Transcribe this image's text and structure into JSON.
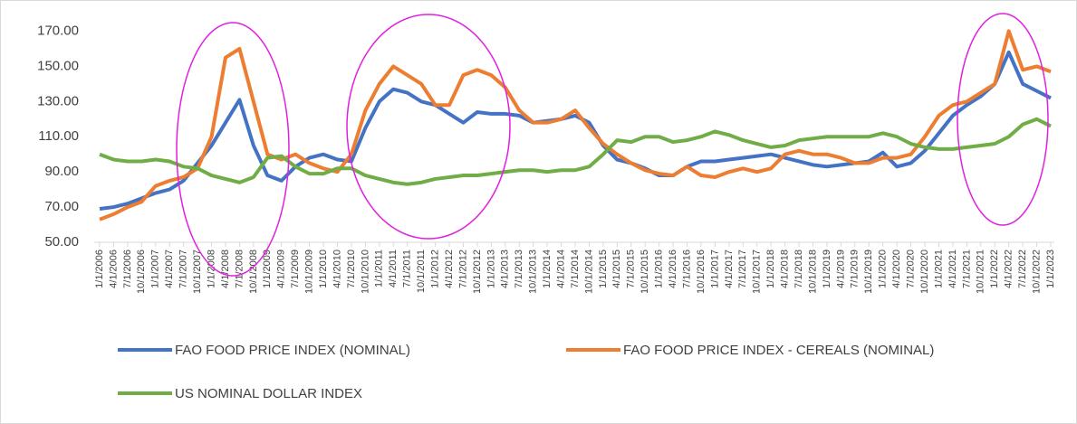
{
  "chart_data": {
    "type": "line",
    "categories": [
      "1/1/2006",
      "4/1/2006",
      "7/1/2006",
      "10/1/2006",
      "1/1/2007",
      "4/1/2007",
      "7/1/2007",
      "10/1/2007",
      "1/1/2008",
      "4/1/2008",
      "7/1/2008",
      "10/1/2008",
      "1/1/2009",
      "4/1/2009",
      "7/1/2009",
      "10/1/2009",
      "1/1/2010",
      "4/1/2010",
      "7/1/2010",
      "10/1/2010",
      "1/1/2011",
      "4/1/2011",
      "7/1/2011",
      "10/1/2011",
      "1/1/2012",
      "4/1/2012",
      "7/1/2012",
      "10/1/2012",
      "1/1/2013",
      "4/1/2013",
      "7/1/2013",
      "10/1/2013",
      "1/1/2014",
      "4/1/2014",
      "7/1/2014",
      "10/1/2014",
      "1/1/2015",
      "4/1/2015",
      "7/1/2015",
      "10/1/2015",
      "1/1/2016",
      "4/1/2016",
      "7/1/2016",
      "10/1/2016",
      "1/1/2017",
      "4/1/2017",
      "7/1/2017",
      "10/1/2017",
      "1/1/2018",
      "4/1/2018",
      "7/1/2018",
      "10/1/2018",
      "1/1/2019",
      "4/1/2019",
      "7/1/2019",
      "10/1/2019",
      "1/1/2020",
      "4/1/2020",
      "7/1/2020",
      "10/1/2020",
      "1/1/2021",
      "4/1/2021",
      "7/1/2021",
      "10/1/2021",
      "1/1/2022",
      "4/1/2022",
      "7/1/2022",
      "10/1/2022",
      "1/1/2023"
    ],
    "series": [
      {
        "name": "FAO FOOD PRICE INDEX (NOMINAL)",
        "color": "#4472c4",
        "values": [
          69,
          70,
          72,
          75,
          78,
          80,
          85,
          95,
          105,
          118,
          131,
          105,
          88,
          85,
          93,
          98,
          100,
          97,
          96,
          115,
          130,
          137,
          135,
          130,
          128,
          123,
          118,
          124,
          123,
          123,
          122,
          118,
          119,
          120,
          122,
          118,
          105,
          97,
          95,
          92,
          88,
          88,
          93,
          96,
          96,
          97,
          98,
          99,
          100,
          98,
          96,
          94,
          93,
          94,
          95,
          96,
          101,
          93,
          95,
          102,
          112,
          122,
          128,
          133,
          140,
          158,
          140,
          136,
          132
        ]
      },
      {
        "name": "FAO FOOD PRICE INDEX - CEREALS (NOMINAL)",
        "color": "#ed7d31",
        "values": [
          63,
          66,
          70,
          73,
          82,
          85,
          87,
          92,
          110,
          155,
          160,
          130,
          100,
          97,
          100,
          95,
          92,
          90,
          100,
          125,
          140,
          150,
          145,
          140,
          128,
          128,
          145,
          148,
          145,
          138,
          125,
          118,
          118,
          120,
          125,
          115,
          106,
          100,
          95,
          91,
          89,
          88,
          93,
          88,
          87,
          90,
          92,
          90,
          92,
          100,
          102,
          100,
          100,
          98,
          95,
          95,
          98,
          98,
          100,
          110,
          122,
          128,
          130,
          135,
          140,
          170,
          148,
          150,
          147
        ]
      },
      {
        "name": "US NOMINAL DOLLAR INDEX",
        "color": "#70ad47",
        "values": [
          100,
          97,
          96,
          96,
          97,
          96,
          93,
          92,
          88,
          86,
          84,
          87,
          98,
          99,
          93,
          89,
          89,
          92,
          92,
          88,
          86,
          84,
          83,
          84,
          86,
          87,
          88,
          88,
          89,
          90,
          91,
          91,
          90,
          91,
          91,
          93,
          100,
          108,
          107,
          110,
          110,
          107,
          108,
          110,
          113,
          111,
          108,
          106,
          104,
          105,
          108,
          109,
          110,
          110,
          110,
          110,
          112,
          110,
          106,
          104,
          103,
          103,
          104,
          105,
          106,
          110,
          117,
          120,
          116
        ]
      }
    ],
    "ylim": [
      50,
      180
    ],
    "yticks": [
      {
        "value": 50,
        "label": "50.00"
      },
      {
        "value": 70,
        "label": "70.00"
      },
      {
        "value": 90,
        "label": "90.00"
      },
      {
        "value": 110,
        "label": "110.00"
      },
      {
        "value": 130,
        "label": "130.00"
      },
      {
        "value": 150,
        "label": "150.00"
      },
      {
        "value": 170,
        "label": "170.00"
      }
    ]
  }
}
